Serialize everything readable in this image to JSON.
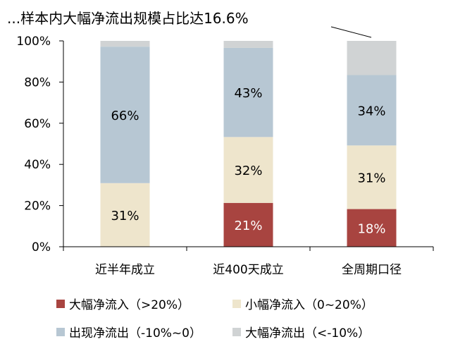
{
  "chart_data": {
    "type": "bar",
    "stacked": true,
    "title": "...样本内大幅净流出规模占比达16.6%",
    "categories": [
      "近半年成立",
      "近400天成立",
      "全周期口径"
    ],
    "ylim": [
      0,
      100
    ],
    "yticks": [
      "0%",
      "20%",
      "40%",
      "60%",
      "80%",
      "100%"
    ],
    "grid": false,
    "legend_position": "bottom",
    "series": [
      {
        "name": "大幅净流入（>20%）",
        "color": "#A84440",
        "values": [
          0,
          21.3,
          18.3
        ],
        "labels": [
          "",
          "21%",
          "18%"
        ]
      },
      {
        "name": "小幅净流入（0~20%）",
        "color": "#EEE5CC",
        "values": [
          30.9,
          32.0,
          30.9
        ],
        "labels": [
          "31%",
          "32%",
          "31%"
        ]
      },
      {
        "name": "出现净流出（-10%~0）",
        "color": "#B7C7D3",
        "values": [
          66.3,
          43.3,
          34.2
        ],
        "labels": [
          "66%",
          "43%",
          "34%"
        ]
      },
      {
        "name": "大幅净流出（<-10%）",
        "color": "#D0D3D4",
        "values": [
          2.8,
          3.4,
          16.6
        ],
        "labels": [
          "",
          "",
          ""
        ]
      }
    ]
  }
}
